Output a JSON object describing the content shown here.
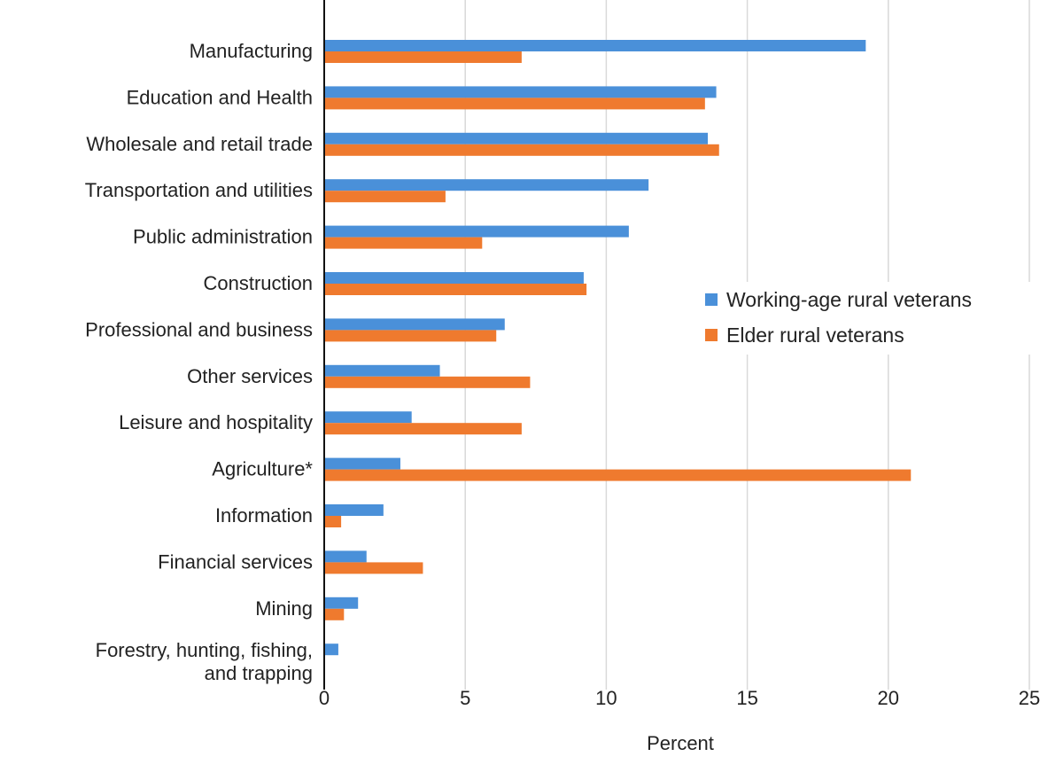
{
  "chart_data": {
    "type": "bar",
    "orientation": "horizontal",
    "title": "",
    "xlabel": "Percent",
    "ylabel": "",
    "xlim": [
      0,
      25
    ],
    "xticks": [
      0,
      5,
      10,
      15,
      20,
      25
    ],
    "grid": true,
    "legend_position": "right",
    "categories": [
      "Manufacturing",
      "Education and Health",
      "Wholesale and retail trade",
      "Transportation and utilities",
      "Public administration",
      "Construction",
      "Professional and business",
      "Other services",
      "Leisure and hospitality",
      "Agriculture*",
      "Information",
      "Financial services",
      "Mining",
      "Forestry, hunting, fishing,\nand trapping"
    ],
    "series": [
      {
        "name": "Working-age rural veterans",
        "color": "#4a90d9",
        "values": [
          19.2,
          13.9,
          13.6,
          11.5,
          10.8,
          9.2,
          6.4,
          4.1,
          3.1,
          2.7,
          2.1,
          1.5,
          1.2,
          0.5
        ]
      },
      {
        "name": "Elder rural veterans",
        "color": "#ef7a2e",
        "values": [
          7.0,
          13.5,
          14.0,
          4.3,
          5.6,
          9.3,
          6.1,
          7.3,
          7.0,
          20.8,
          0.6,
          3.5,
          0.7,
          0
        ]
      }
    ]
  }
}
